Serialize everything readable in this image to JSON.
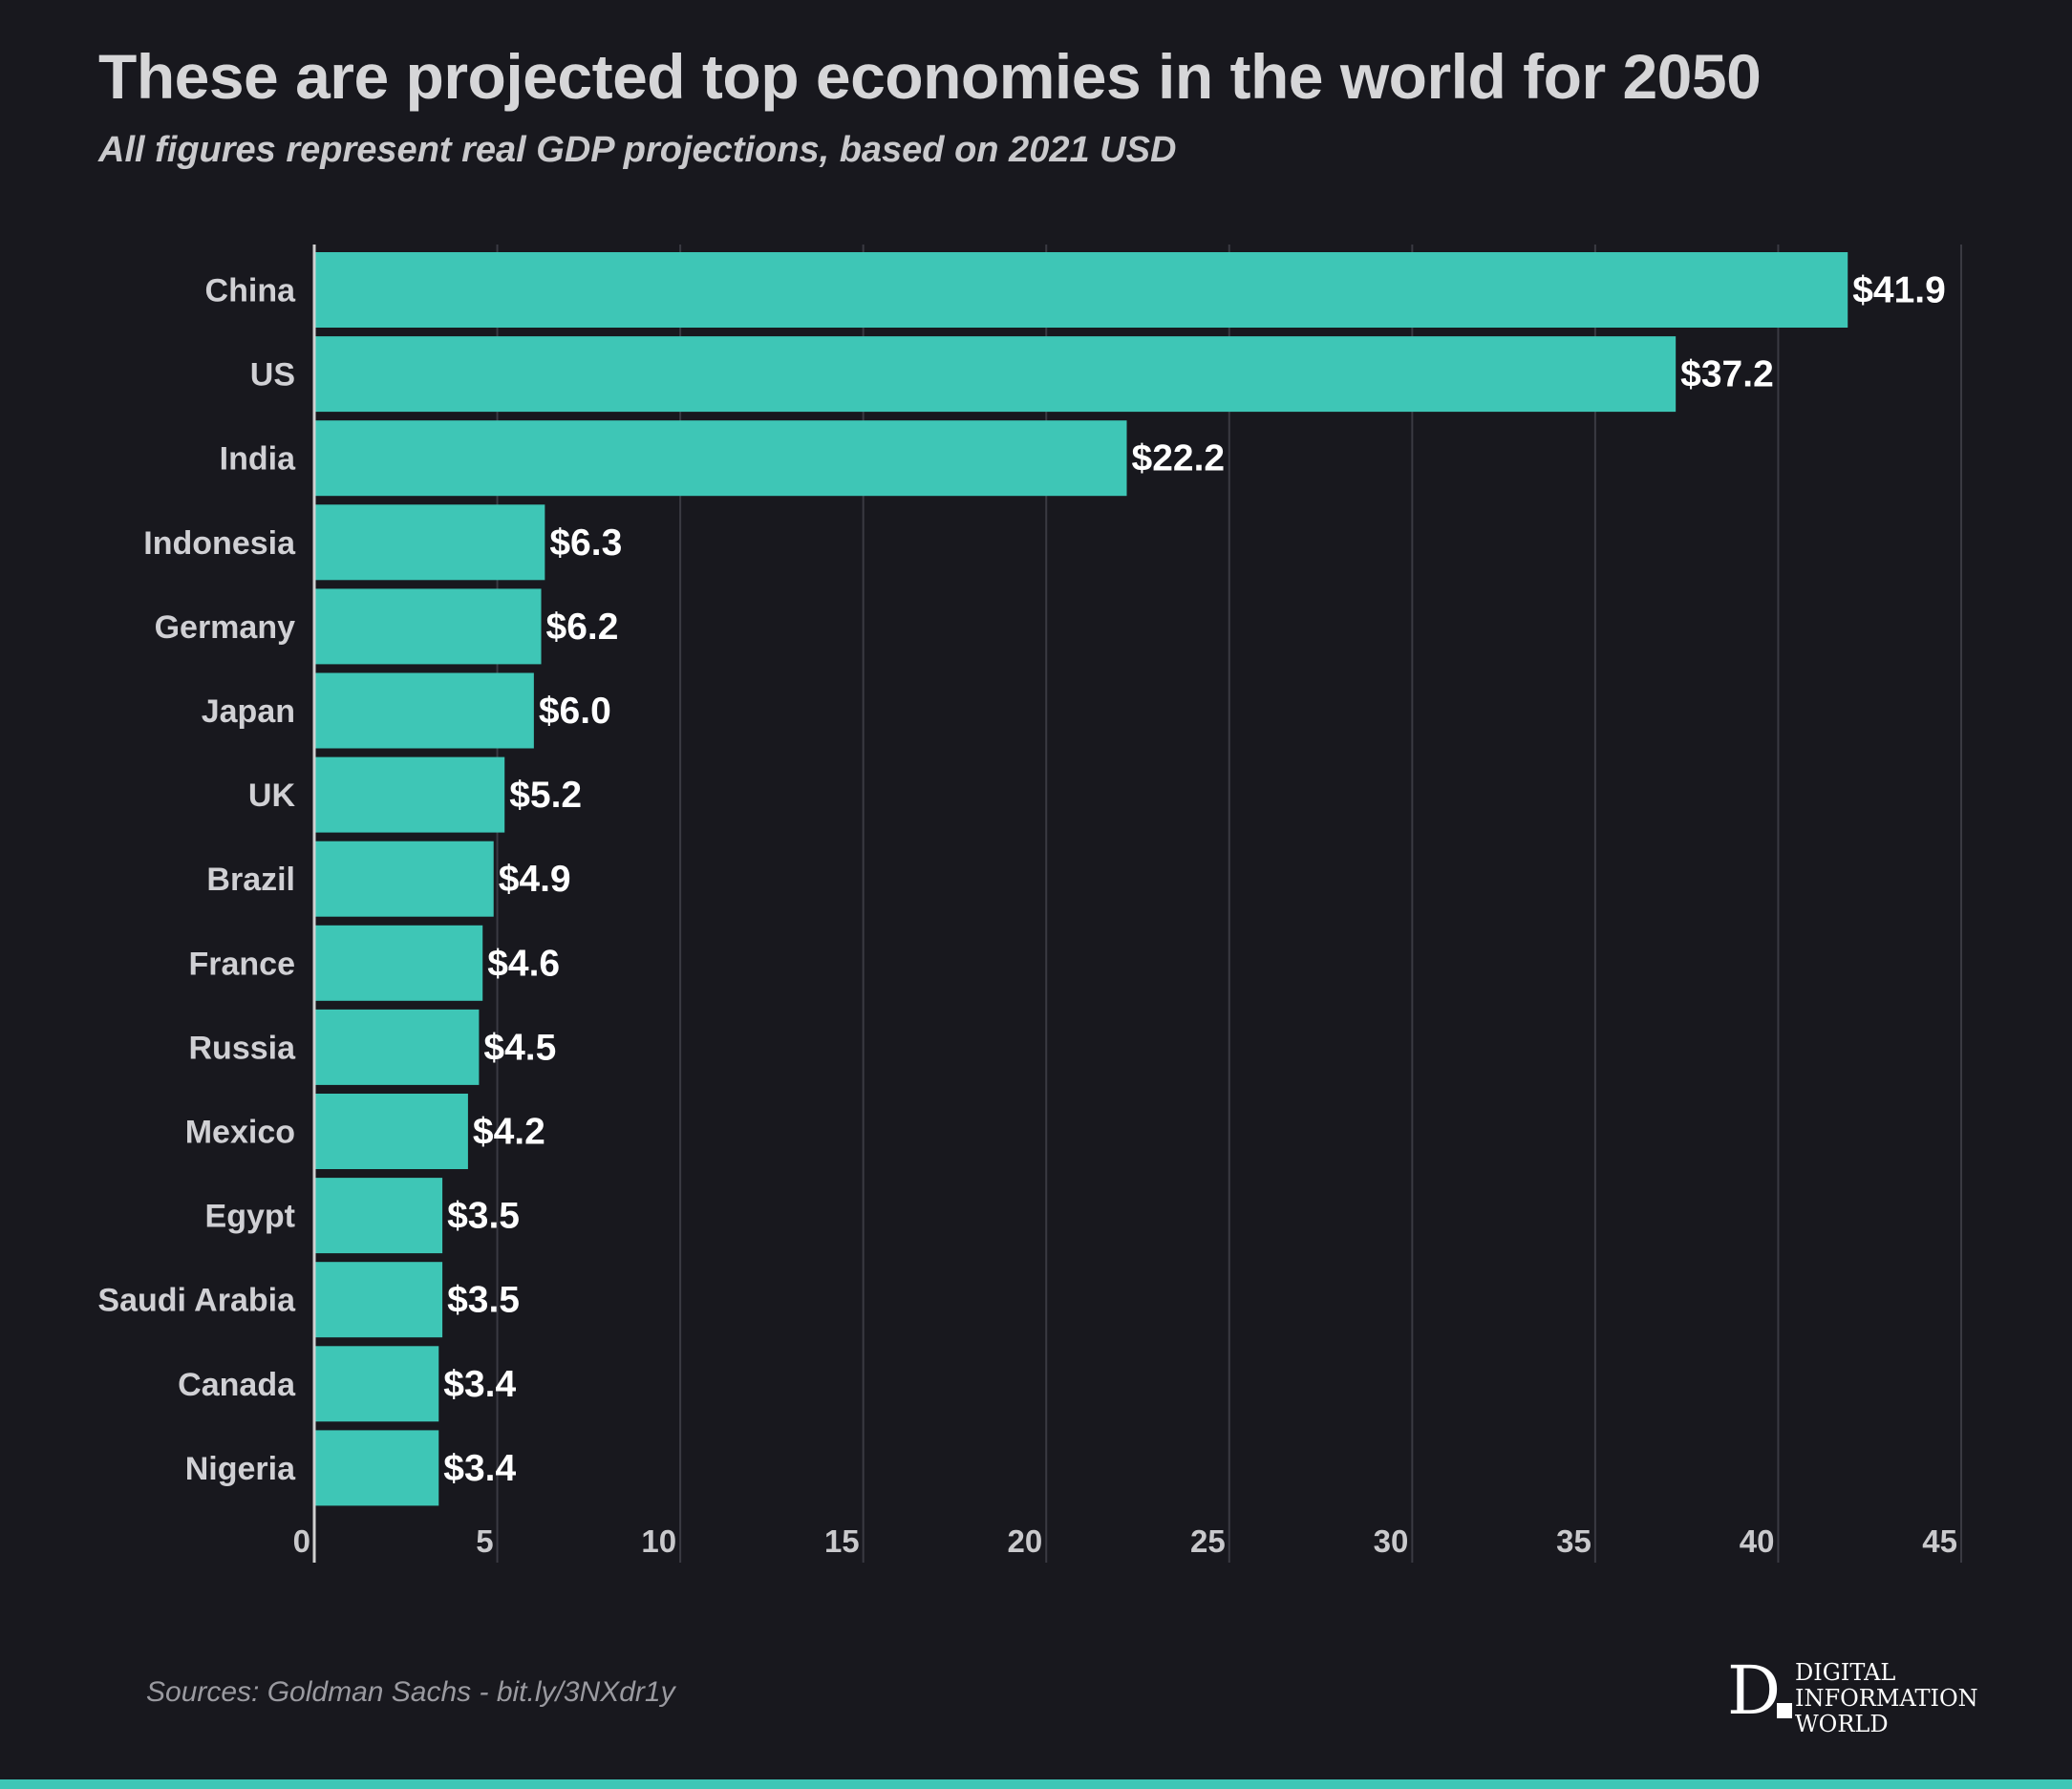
{
  "header": {
    "title": "These are projected top economies in the world for 2050",
    "subtitle": "All figures represent real GDP projections, based on 2021 USD"
  },
  "footer": {
    "source": "Sources: Goldman Sachs - bit.ly/3NXdr1y",
    "logo_letter": "D",
    "logo_lines": [
      "DIGITAL",
      "INFORMATION",
      "WORLD"
    ]
  },
  "colors": {
    "background": "#18181e",
    "bar": "#3ec6b6",
    "grid": "#3a3a42",
    "axis": "#d0d0d0",
    "label": "#d0d0d4",
    "value_label": "#ffffff"
  },
  "chart_data": {
    "type": "bar",
    "orientation": "horizontal",
    "title": "These are projected top economies in the world for 2050",
    "xlabel": "",
    "ylabel": "",
    "xlim": [
      0,
      45
    ],
    "xticks": [
      0,
      5,
      10,
      15,
      20,
      25,
      30,
      35,
      40,
      45
    ],
    "grid": true,
    "value_prefix": "$",
    "categories": [
      "China",
      "US",
      "India",
      "Indonesia",
      "Germany",
      "Japan",
      "UK",
      "Brazil",
      "France",
      "Russia",
      "Mexico",
      "Egypt",
      "Saudi Arabia",
      "Canada",
      "Nigeria"
    ],
    "values": [
      41.9,
      37.2,
      22.2,
      6.3,
      6.2,
      6.0,
      5.2,
      4.9,
      4.6,
      4.5,
      4.2,
      3.5,
      3.5,
      3.4,
      3.4
    ],
    "value_labels": [
      "$41.9",
      "$37.2",
      "$22.2",
      "$6.3",
      "$6.2",
      "$6.0",
      "$5.2",
      "$4.9",
      "$4.6",
      "$4.5",
      "$4.2",
      "$3.5",
      "$3.5",
      "$3.4",
      "$3.4"
    ]
  }
}
